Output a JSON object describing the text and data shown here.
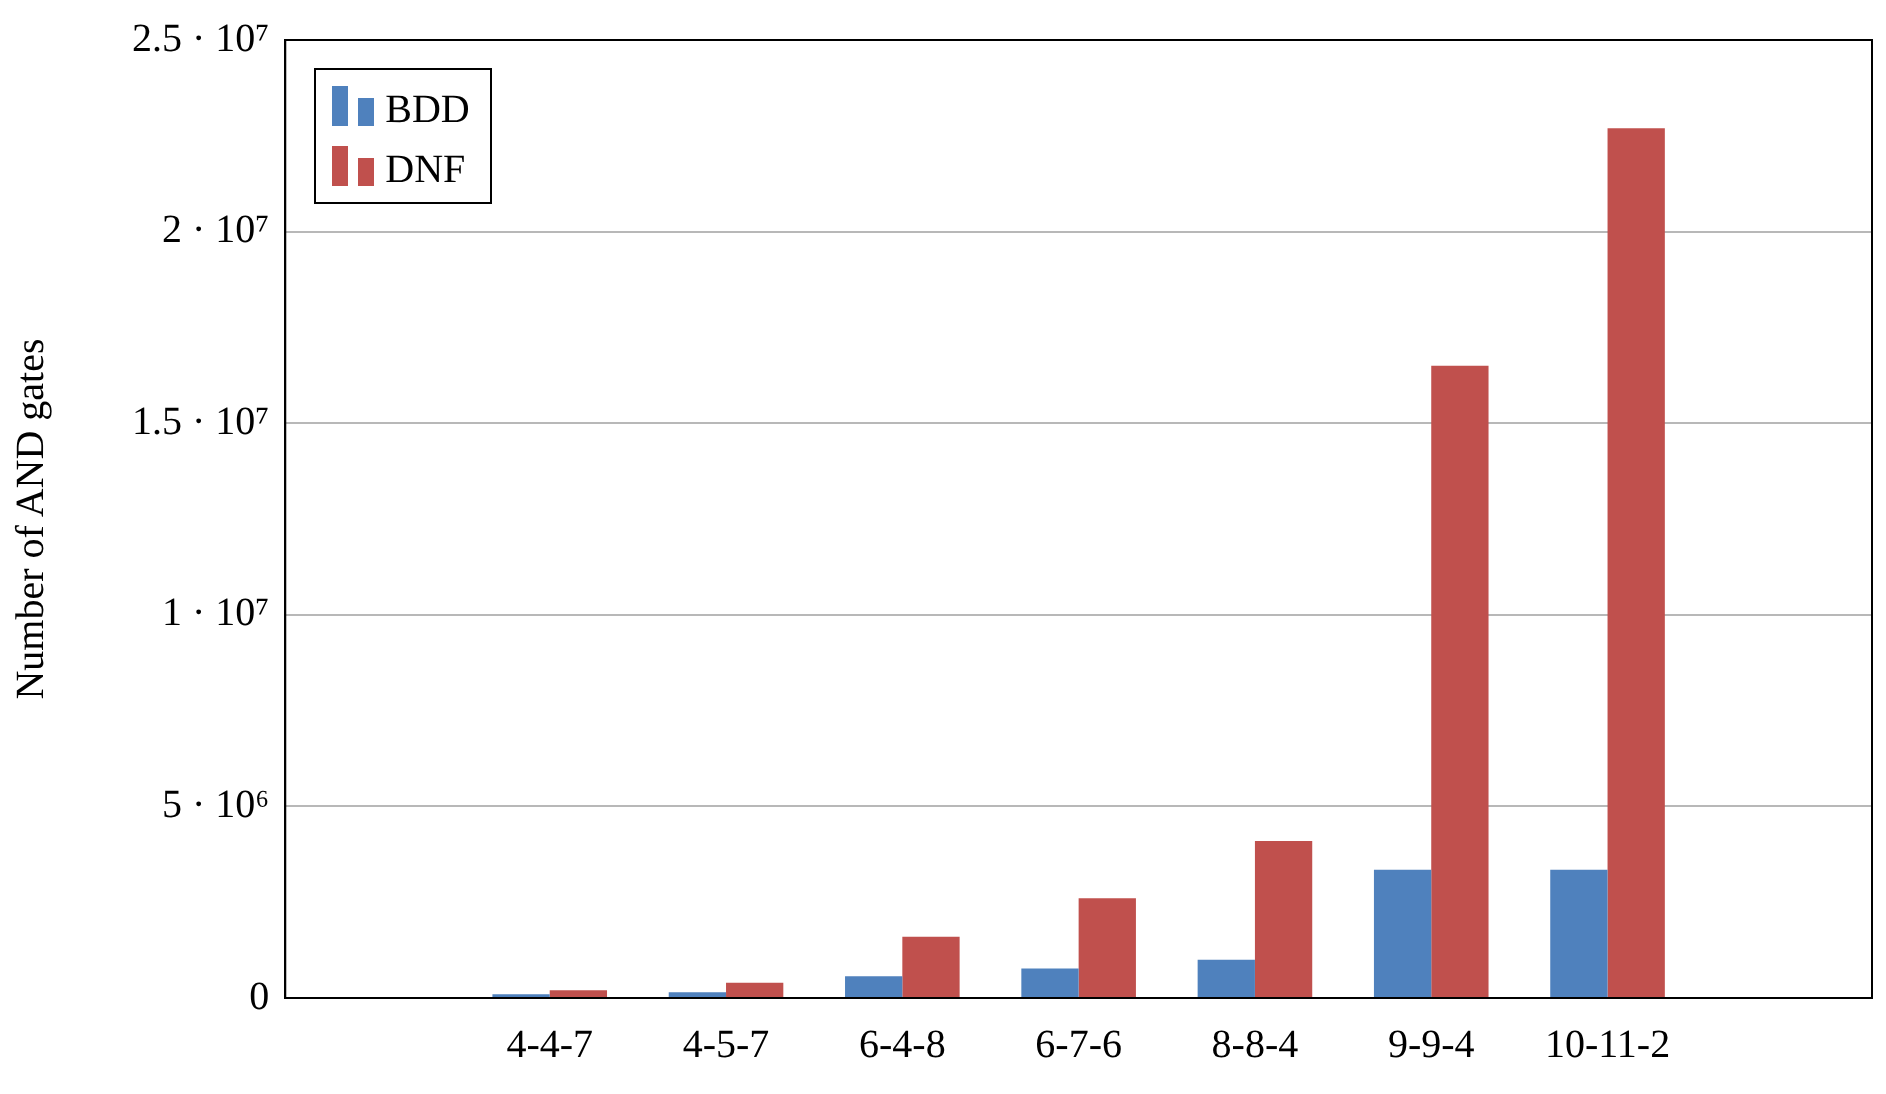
{
  "chart_data": {
    "type": "bar",
    "ylabel": "Number of AND gates",
    "categories": [
      null,
      "4-4-7",
      "4-5-7",
      "6-4-8",
      "6-7-6",
      "8-8-4",
      "9-9-4",
      "10-11-2",
      null
    ],
    "series": [
      {
        "name": "BDD",
        "color": "#4f81bd",
        "values": [
          null,
          100000,
          150000,
          570000,
          770000,
          1000000,
          3350000,
          3350000,
          null
        ]
      },
      {
        "name": "DNF",
        "color": "#c0504d",
        "values": [
          null,
          200000,
          400000,
          1600000,
          2600000,
          4100000,
          16500000,
          22700000,
          null
        ]
      }
    ],
    "ylim": [
      0,
      25000000
    ],
    "yticks": [
      0,
      {
        "value": 5000000,
        "label": "5 · 10⁶"
      },
      {
        "value": 10000000,
        "label": "1 · 10⁷"
      },
      {
        "value": 15000000,
        "label": "1.5 · 10⁷"
      },
      {
        "value": 20000000,
        "label": "2 · 10⁷"
      },
      {
        "value": 25000000,
        "label": "2.5 · 10⁷"
      }
    ],
    "grid": "y",
    "legend": "top left"
  }
}
